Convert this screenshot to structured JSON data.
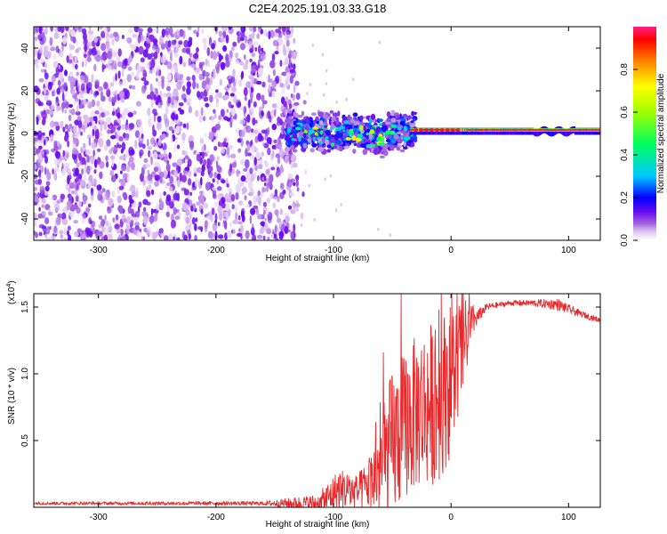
{
  "title": "C2E4.2025.191.03.33.G18",
  "chart_data": [
    {
      "type": "heatmap",
      "xlabel": "Height of straight line (km)",
      "ylabel": "Frequency (Hz)",
      "xlim": [
        -355,
        127
      ],
      "ylim": [
        -50,
        50
      ],
      "x_ticks": [
        -300,
        -200,
        -100,
        0,
        100
      ],
      "y_ticks": [
        -40,
        -20,
        0,
        20,
        40
      ],
      "colorbar": {
        "label": "Normalized spectral amplitude",
        "range": [
          0,
          1
        ],
        "ticks": [
          0.0,
          0.2,
          0.4,
          0.6,
          0.8
        ],
        "colormap": [
          "#ffffff",
          "#e0c8f0",
          "#a060e0",
          "#6a0ff0",
          "#0000ff",
          "#00c8ff",
          "#00ff60",
          "#a0ff00",
          "#ffff00",
          "#ff8000",
          "#ff0000",
          "#ff2080"
        ]
      },
      "regions": [
        {
          "x_range": [
            -355,
            -130
          ],
          "freq_range": [
            -50,
            50
          ],
          "amplitude_range": [
            0.0,
            0.1
          ],
          "description_color": "#8a2be2"
        },
        {
          "x_range": [
            -140,
            -30
          ],
          "freq_range": [
            -12,
            10
          ],
          "amplitude_range": [
            0.1,
            0.7
          ]
        },
        {
          "x_range": [
            -30,
            127
          ],
          "freq_center": 2,
          "amplitude_range": [
            0.4,
            1.0
          ]
        }
      ]
    },
    {
      "type": "line",
      "xlabel": "Height of straight line (km)",
      "ylabel": "SNR (10 * v/v)",
      "y_multiplier": "(x10",
      "y_multiplier_exp": "4",
      "y_multiplier_close": ")",
      "xlim": [
        -355,
        127
      ],
      "ylim": [
        0,
        16000
      ],
      "x_ticks": [
        -300,
        -200,
        -100,
        0,
        100
      ],
      "y_ticks": [
        0.5,
        1.0,
        1.5
      ],
      "color": "#e8282a",
      "envelope": {
        "x": [
          -355,
          -160,
          -110,
          -95,
          -80,
          -70,
          -60,
          -50,
          -40,
          -30,
          -20,
          -10,
          0,
          10,
          20,
          30,
          50,
          70,
          90,
          110,
          127
        ],
        "base": [
          300,
          300,
          300,
          1200,
          1000,
          1500,
          2500,
          4000,
          5500,
          6500,
          7000,
          7500,
          9000,
          11500,
          14000,
          15000,
          15300,
          15300,
          15200,
          14500,
          14000
        ],
        "spike": [
          200,
          300,
          1500,
          2500,
          2000,
          3000,
          6000,
          9000,
          8500,
          9000,
          9500,
          9500,
          9000,
          6000,
          1500,
          500,
          400,
          500,
          900,
          500,
          400
        ]
      }
    }
  ]
}
